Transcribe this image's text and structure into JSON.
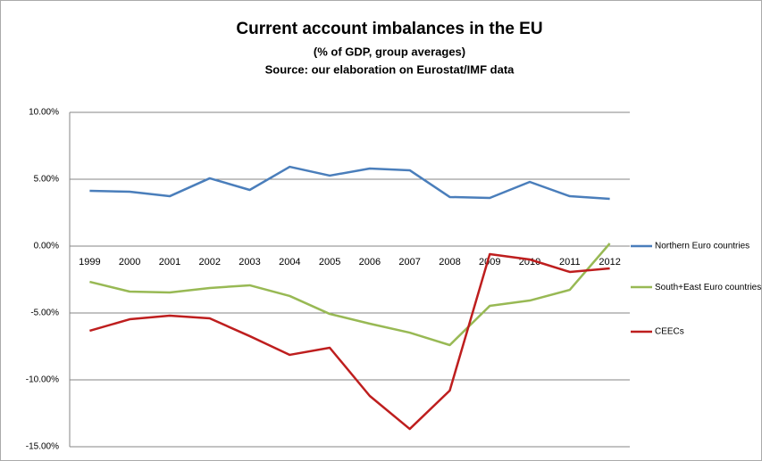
{
  "chart_data": {
    "type": "line",
    "title": "Current account imbalances in the EU",
    "subtitle": [
      "(% of GDP, group averages)",
      "Source: our elaboration on Eurostat/IMF data"
    ],
    "categories": [
      "1999",
      "2000",
      "2001",
      "2002",
      "2003",
      "2004",
      "2005",
      "2006",
      "2007",
      "2008",
      "2009",
      "2010",
      "2011",
      "2012"
    ],
    "series": [
      {
        "name": "Northern Euro countries",
        "color": "#4a7ebb",
        "values": [
          4.13,
          4.07,
          3.73,
          5.07,
          4.2,
          5.93,
          5.27,
          5.8,
          5.67,
          3.67,
          3.6,
          4.8,
          3.73,
          3.53
        ]
      },
      {
        "name": "South+East Euro countries",
        "color": "#98b954",
        "values": [
          -2.67,
          -3.4,
          -3.47,
          -3.13,
          -2.93,
          -3.73,
          -5.07,
          -5.8,
          -6.47,
          -7.4,
          -4.47,
          -4.07,
          -3.27,
          0.2
        ]
      },
      {
        "name": "CEECs",
        "color": "#be1e1e",
        "values": [
          -6.33,
          -5.47,
          -5.2,
          -5.4,
          -6.73,
          -8.13,
          -7.6,
          -11.2,
          -13.67,
          -10.8,
          -0.6,
          -1.0,
          -1.93,
          -1.67
        ]
      }
    ],
    "ylim": [
      -15,
      10
    ],
    "yticks": [
      {
        "value": -15,
        "label": "-15.00%"
      },
      {
        "value": -10,
        "label": "-10.00%"
      },
      {
        "value": -5,
        "label": "-5.00%"
      },
      {
        "value": 0,
        "label": "0.00%"
      },
      {
        "value": 5,
        "label": "5.00%"
      },
      {
        "value": 10,
        "label": "10.00%"
      }
    ],
    "grid": true,
    "legend": "right"
  }
}
